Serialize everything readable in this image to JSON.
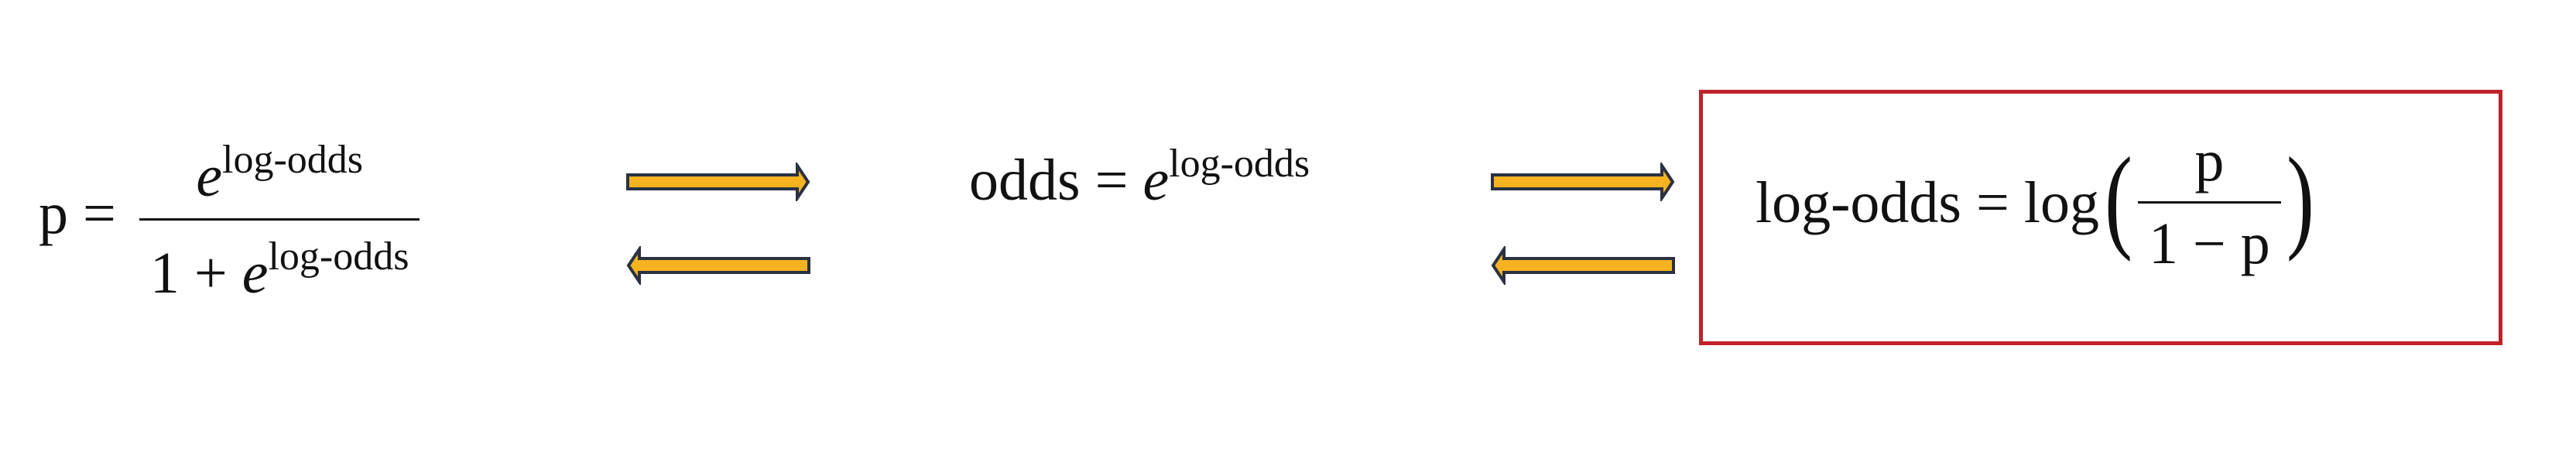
{
  "formula_1": {
    "lhs": "p =",
    "numerator_base": "e",
    "numerator_exponent": "log-odds",
    "denominator_prefix": "1 + ",
    "denominator_base": "e",
    "denominator_exponent": "log-odds"
  },
  "formula_2": {
    "lhs": "odds = ",
    "base": "e",
    "exponent": "log-odds"
  },
  "formula_3": {
    "lhs": "log-odds = log",
    "open_paren": "(",
    "numerator": "p",
    "denominator": "1 − p",
    "close_paren": ")"
  },
  "colors": {
    "arrow_fill": "#f5b320",
    "arrow_stroke": "#2a3142",
    "highlight_border": "#c0212a"
  },
  "arrows": [
    {
      "id": "arrow-1-right",
      "direction": "right"
    },
    {
      "id": "arrow-1-left",
      "direction": "left"
    },
    {
      "id": "arrow-2-right",
      "direction": "right"
    },
    {
      "id": "arrow-2-left",
      "direction": "left"
    }
  ]
}
